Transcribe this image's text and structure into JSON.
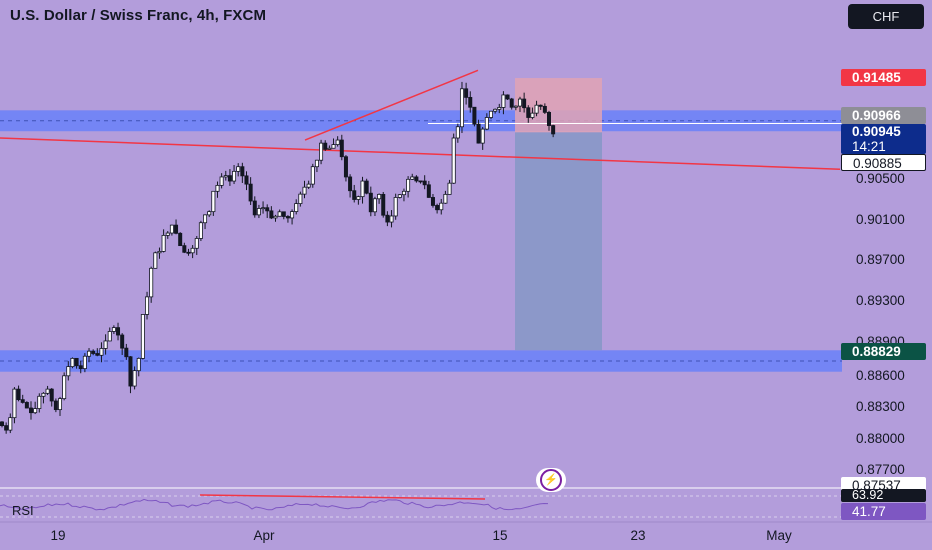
{
  "header": {
    "title": "U.S. Dollar / Swiss Franc, 4h, FXCM",
    "currency_button": "CHF"
  },
  "price_axis": {
    "ticks": [
      "0.90500",
      "0.90100",
      "0.89700",
      "0.89300",
      "0.88900",
      "0.88600",
      "0.88300",
      "0.88000",
      "0.87700"
    ],
    "badges": {
      "target": "0.91485",
      "zone_high": "0.90966",
      "last": "0.90945",
      "countdown": "14:21",
      "line": "0.90885",
      "support": "0.88829",
      "low": "0.87537"
    }
  },
  "rsi_pane": {
    "label": "RSI",
    "value_top": "63.92",
    "value": "41.77"
  },
  "time_axis": [
    "19",
    "Apr",
    "15",
    "23",
    "May"
  ],
  "colors": {
    "background": "#b39ddb",
    "zone": "#5b7cff",
    "red_line": "#f23645",
    "candle": "#131722",
    "short_stop": "#e0a3b4",
    "short_target": "#8a98c8",
    "rsi_line": "#7e57c2",
    "badge_red": "#f23645",
    "badge_navy": "#0d2c8c",
    "badge_green": "#0b5345"
  },
  "chart_data": {
    "type": "candlestick",
    "title": "U.S. Dollar / Swiss Franc, 4h, FXCM",
    "timeframe": "4h",
    "x_ticks": [
      "19",
      "Apr",
      "15",
      "23",
      "May"
    ],
    "y_ticks": [
      0.905,
      0.901,
      0.897,
      0.893,
      0.889,
      0.886,
      0.883,
      0.88,
      0.877
    ],
    "close_path": [
      0.8805,
      0.8845,
      0.8832,
      0.8822,
      0.8838,
      0.8845,
      0.8825,
      0.8858,
      0.8875,
      0.8865,
      0.8882,
      0.8878,
      0.8892,
      0.8905,
      0.8885,
      0.8848,
      0.8875,
      0.8935,
      0.8978,
      0.8995,
      0.9005,
      0.8985,
      0.8978,
      0.8992,
      0.9015,
      0.9038,
      0.9052,
      0.9048,
      0.9062,
      0.9045,
      0.9015,
      0.9022,
      0.9012,
      0.9018,
      0.9012,
      0.9026,
      0.9042,
      0.9062,
      0.9085,
      0.908,
      0.9088,
      0.9052,
      0.903,
      0.9048,
      0.9018,
      0.9035,
      0.9008,
      0.9032,
      0.9038,
      0.9052,
      0.9048,
      0.9032,
      0.902,
      0.9035,
      0.909,
      0.9138,
      0.912,
      0.9085,
      0.911,
      0.9118,
      0.9132,
      0.912,
      0.9128,
      0.911,
      0.9122,
      0.9115,
      0.9094
    ],
    "zones": [
      {
        "from": 0.90966,
        "to": 0.9117
      },
      {
        "from": 0.8862,
        "to": 0.88829
      }
    ],
    "trendlines": [
      {
        "from": [
          0,
          0.909
        ],
        "to": [
          840,
          0.90595
        ]
      },
      {
        "from": [
          305,
          0.9088
        ],
        "to": [
          478,
          0.9156
        ]
      }
    ],
    "short_position": {
      "entry": 0.90955,
      "stop": 0.91485,
      "target": 0.88829
    },
    "last_price": 0.90945,
    "rsi": {
      "value": 41.77,
      "level": 63.92
    }
  }
}
